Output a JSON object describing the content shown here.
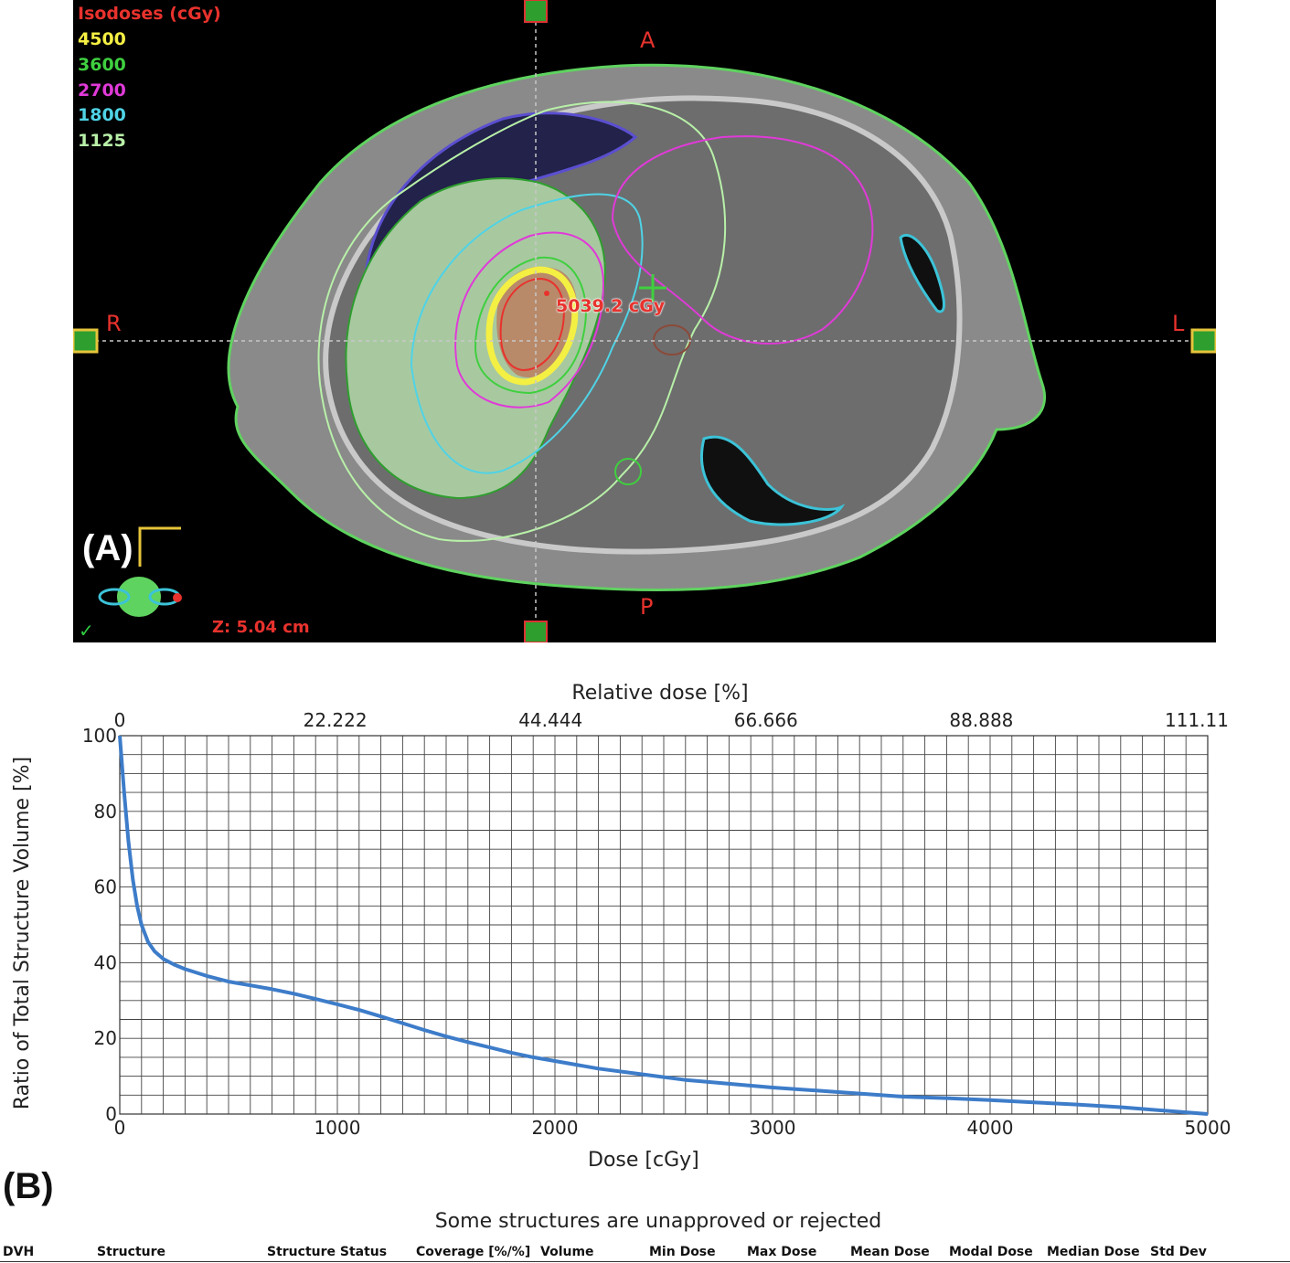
{
  "panel_a": {
    "label": "(A)",
    "isodose_legend": {
      "title": "Isodoses (cGy)",
      "levels": [
        {
          "value": "4500",
          "color": "#f4ef43"
        },
        {
          "value": "3600",
          "color": "#3fcf3f"
        },
        {
          "value": "2700",
          "color": "#e03ad8"
        },
        {
          "value": "1800",
          "color": "#4fd3e6"
        },
        {
          "value": "1125",
          "color": "#b8f0a8"
        }
      ]
    },
    "orientation": {
      "anterior": "A",
      "posterior": "P",
      "right": "R",
      "left": "L"
    },
    "max_dose_readout": "5039.2 cGy",
    "z_position": "Z: 5.04 cm",
    "status_check": "✓"
  },
  "panel_b": {
    "label": "(B)",
    "warning": "Some structures are unapproved or rejected",
    "table_header": [
      "DVH",
      "Structure",
      "Structure Status",
      "Coverage [%/%]",
      "Volume",
      "Min Dose",
      "Max Dose",
      "Mean Dose",
      "Modal Dose",
      "Median Dose",
      "Std Dev"
    ]
  },
  "chart_data": {
    "type": "line",
    "title": "",
    "xlabel": "Dose [cGy]",
    "ylabel": "Ratio of Total Structure Volume [%]",
    "x2label": "Relative dose [%]",
    "xlim": [
      0,
      5000
    ],
    "ylim": [
      0,
      100
    ],
    "x_ticks": [
      "0",
      "1000",
      "2000",
      "3000",
      "4000",
      "5000"
    ],
    "y_ticks": [
      "0",
      "20",
      "40",
      "60",
      "80",
      "100"
    ],
    "x2_ticks": [
      "0",
      "22.222",
      "44.444",
      "66.666",
      "88.888",
      "111.11"
    ],
    "grid": true,
    "series": [
      {
        "name": "DVH",
        "color": "#3d7cc9",
        "x": [
          0,
          20,
          40,
          60,
          80,
          100,
          130,
          160,
          200,
          250,
          300,
          400,
          500,
          600,
          700,
          800,
          900,
          1000,
          1100,
          1200,
          1300,
          1400,
          1500,
          1600,
          1700,
          1800,
          1900,
          2000,
          2200,
          2400,
          2600,
          2800,
          3000,
          3200,
          3400,
          3600,
          3800,
          4000,
          4200,
          4400,
          4600,
          4800,
          5000
        ],
        "y": [
          100,
          85,
          72,
          62,
          55,
          50,
          45.5,
          43,
          41,
          39.5,
          38.3,
          36.5,
          35,
          34,
          33,
          31.8,
          30.4,
          29,
          27.5,
          25.8,
          24,
          22.2,
          20.5,
          19,
          17.6,
          16.2,
          15,
          14,
          12,
          10.5,
          9,
          8,
          7,
          6.2,
          5.4,
          4.6,
          4.2,
          3.7,
          3.1,
          2.5,
          1.8,
          0.9,
          0
        ]
      }
    ]
  }
}
